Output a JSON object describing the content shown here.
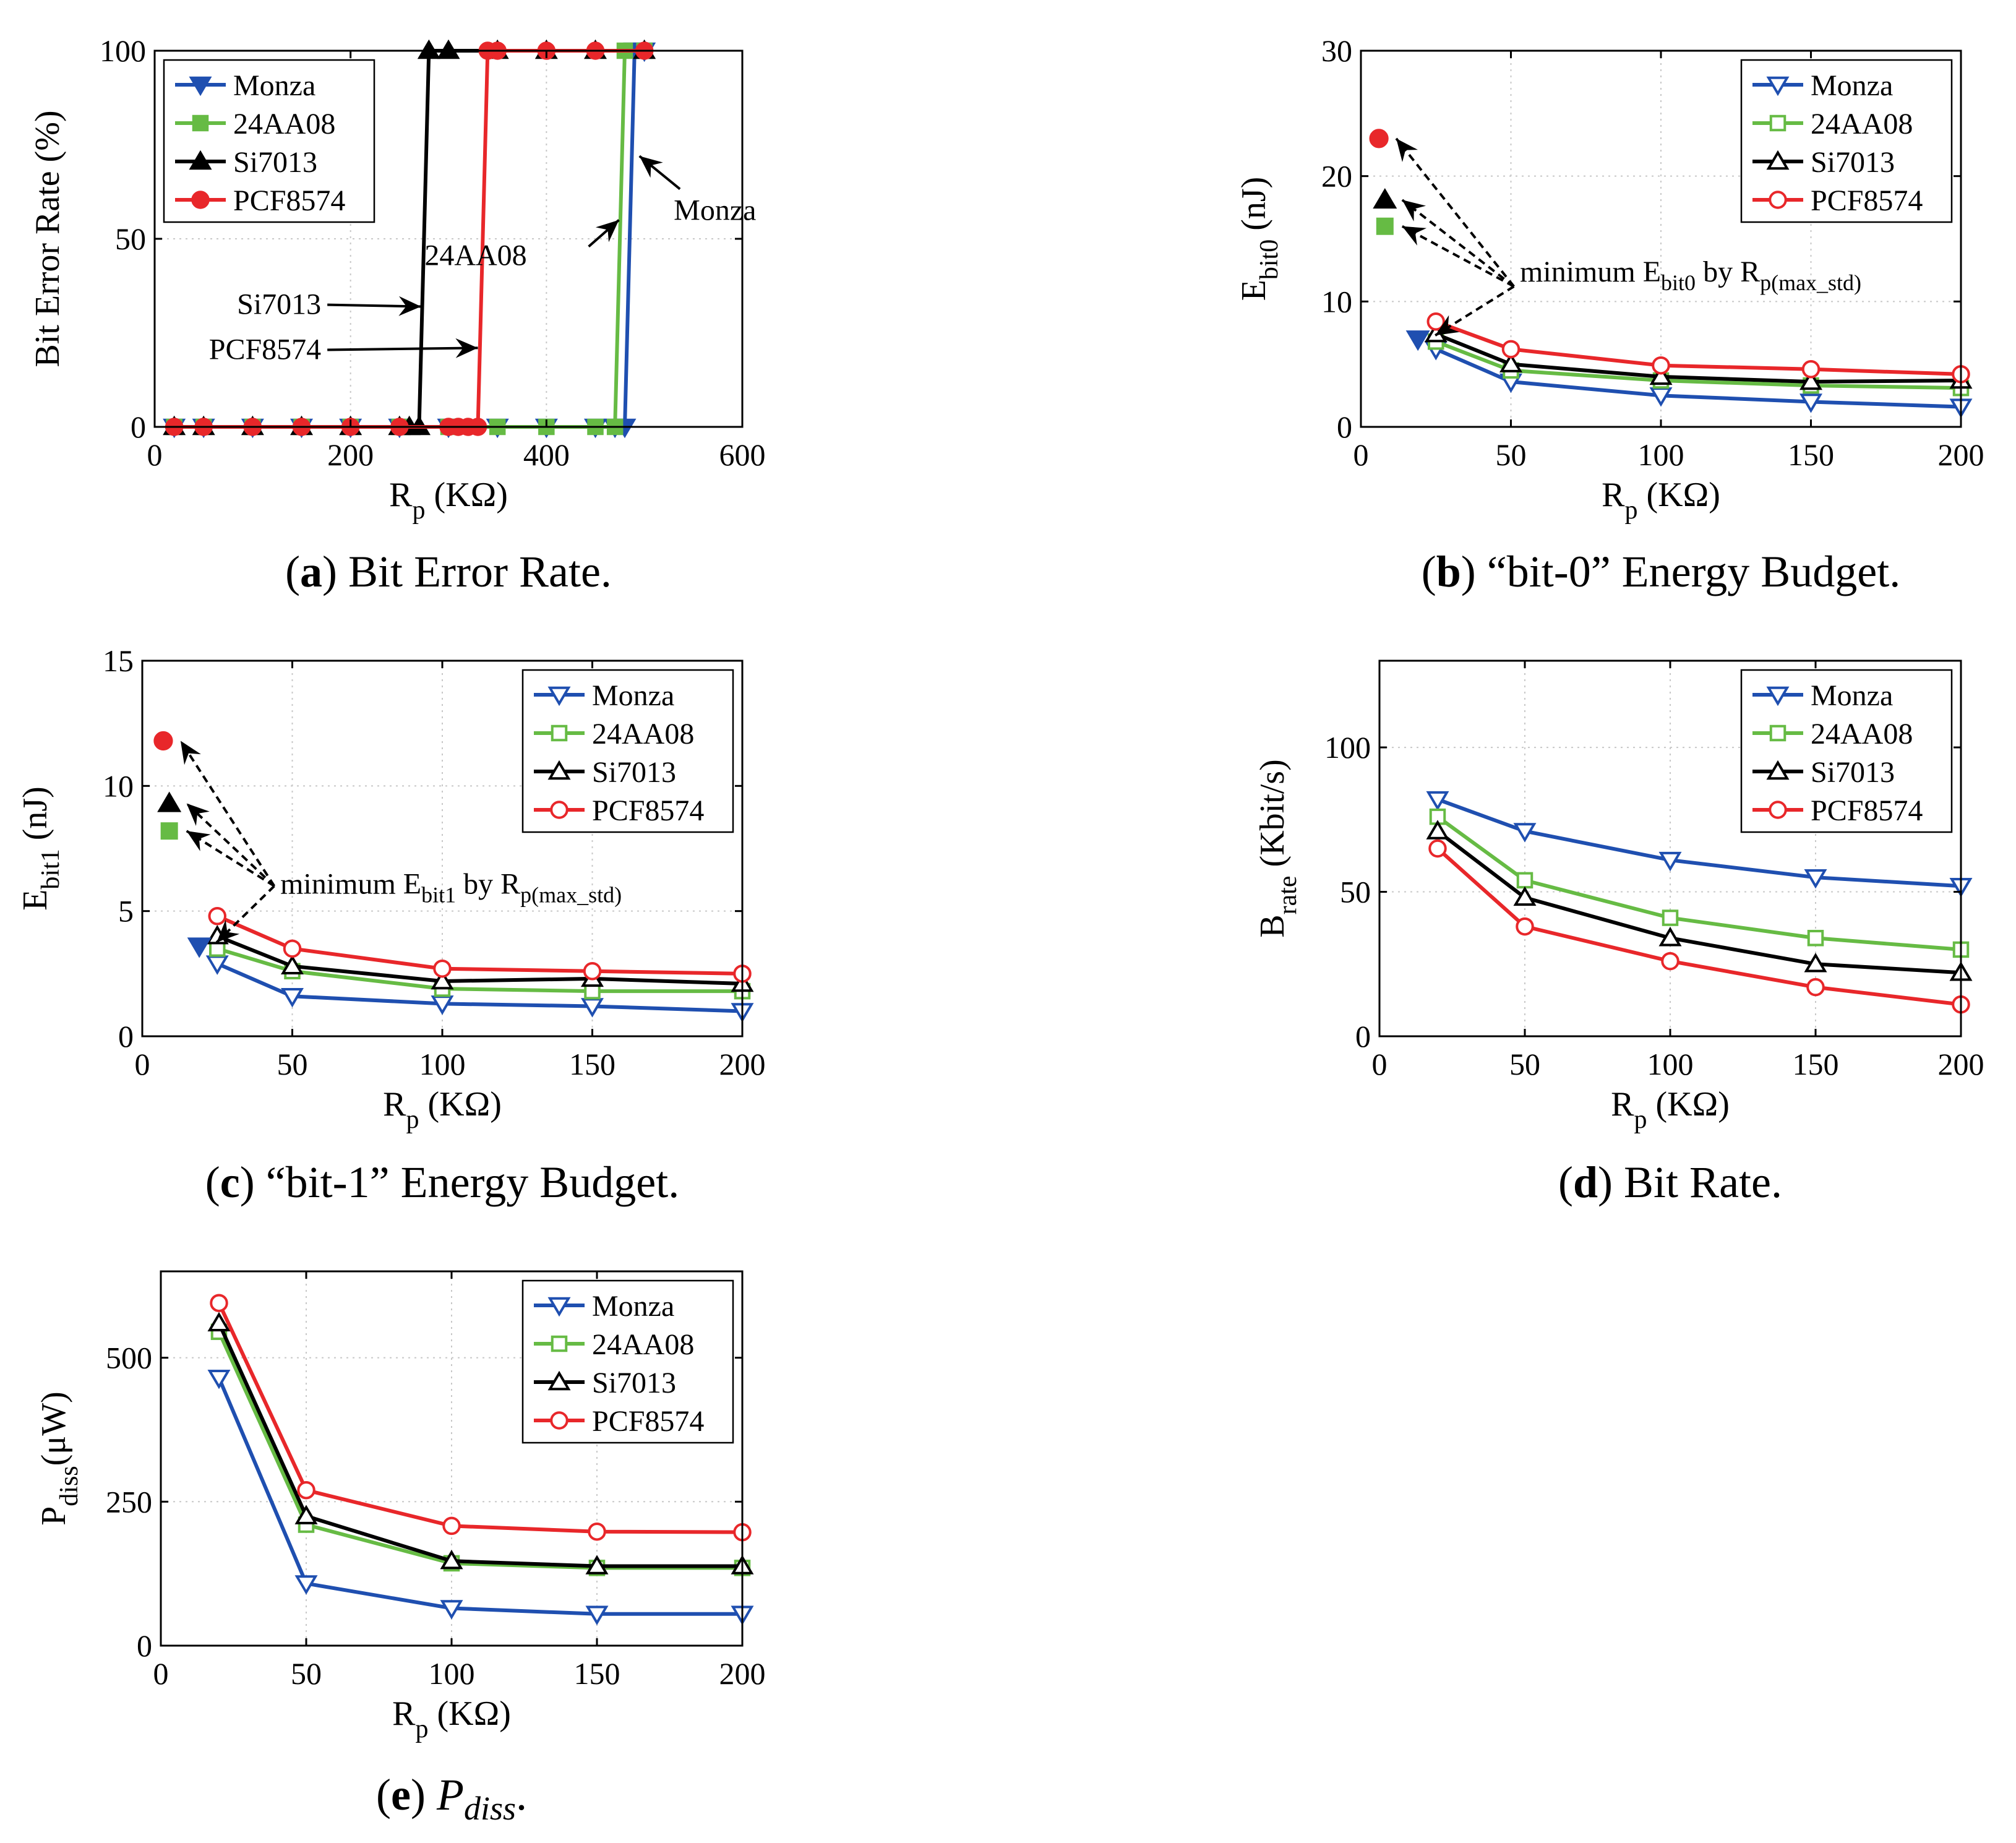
{
  "colors": {
    "Monza": "#1f4fb0",
    "24AA08": "#66bb44",
    "Si7013": "#000000",
    "PCF8574": "#e8272a",
    "grid": "#c8c8c8",
    "arrow": "#000000"
  },
  "series_names": [
    "Monza",
    "24AA08",
    "Si7013",
    "PCF8574"
  ],
  "chart_data": [
    {
      "id": "a",
      "type": "line",
      "title": "",
      "caption_letter": "a",
      "caption_text": "Bit Error Rate.",
      "ylabel": "Bit Error Rate (%)",
      "xlabel_main": "R",
      "xlabel_sub": "p",
      "xlabel_suffix": " (KΩ)",
      "xlim": [
        0,
        600
      ],
      "ylim": [
        0,
        100
      ],
      "xticks": [
        0,
        200,
        400,
        600
      ],
      "yticks": [
        0,
        50,
        100
      ],
      "filled_markers": true,
      "legend_position": "top-left",
      "series": [
        {
          "name": "Monza",
          "x": [
            20,
            50,
            100,
            150,
            200,
            250,
            300,
            350,
            400,
            450,
            470,
            480,
            490,
            500
          ],
          "y": [
            0,
            0,
            0,
            0,
            0,
            0,
            0,
            0,
            0,
            0,
            0,
            0,
            100,
            100
          ]
        },
        {
          "name": "24AA08",
          "x": [
            20,
            50,
            100,
            150,
            200,
            250,
            300,
            350,
            400,
            450,
            470,
            480,
            500
          ],
          "y": [
            0,
            0,
            0,
            0,
            0,
            0,
            0,
            0,
            0,
            0,
            0,
            100,
            100
          ]
        },
        {
          "name": "Si7013",
          "x": [
            20,
            50,
            100,
            150,
            200,
            250,
            260,
            270,
            280,
            300,
            350,
            400,
            450,
            500
          ],
          "y": [
            0,
            0,
            0,
            0,
            0,
            0,
            0,
            0,
            100,
            100,
            100,
            100,
            100,
            100
          ]
        },
        {
          "name": "PCF8574",
          "x": [
            20,
            50,
            100,
            150,
            200,
            250,
            300,
            310,
            320,
            330,
            340,
            350,
            400,
            450,
            500
          ],
          "y": [
            0,
            0,
            0,
            0,
            0,
            0,
            0,
            0,
            0,
            0,
            100,
            100,
            100,
            100,
            100
          ]
        }
      ],
      "annotations": [
        {
          "text": "Monza",
          "target_x": 495,
          "target_y": 72,
          "label_x": 530,
          "label_y": 55
        },
        {
          "text": "24AA08",
          "target_x": 474,
          "target_y": 55,
          "label_x": 380,
          "label_y": 43
        },
        {
          "text": "Si7013",
          "target_x": 272,
          "target_y": 32,
          "label_x": 170,
          "label_y": 30
        },
        {
          "text": "PCF8574",
          "target_x": 330,
          "target_y": 21,
          "label_x": 170,
          "label_y": 18
        }
      ]
    },
    {
      "id": "b",
      "type": "line",
      "caption_letter": "b",
      "caption_text": "“bit-0” Energy Budget.",
      "ylabel_main": "E",
      "ylabel_sub": "bit0",
      "ylabel_suffix": " (nJ)",
      "xlabel_main": "R",
      "xlabel_sub": "p",
      "xlabel_suffix": " (KΩ)",
      "xlim": [
        0,
        200
      ],
      "ylim": [
        0,
        30
      ],
      "xticks": [
        0,
        50,
        100,
        150,
        200
      ],
      "yticks": [
        0,
        10,
        20,
        30
      ],
      "filled_markers": false,
      "legend_position": "top-right",
      "series": [
        {
          "name": "Monza",
          "x": [
            25,
            50,
            100,
            150,
            200
          ],
          "y": [
            6.2,
            3.6,
            2.5,
            2.0,
            1.6
          ]
        },
        {
          "name": "24AA08",
          "x": [
            25,
            50,
            100,
            150,
            200
          ],
          "y": [
            6.8,
            4.5,
            3.7,
            3.3,
            3.1
          ]
        },
        {
          "name": "Si7013",
          "x": [
            25,
            50,
            100,
            150,
            200
          ],
          "y": [
            7.4,
            5.0,
            4.0,
            3.6,
            3.7
          ]
        },
        {
          "name": "PCF8574",
          "x": [
            25,
            50,
            100,
            150,
            200
          ],
          "y": [
            8.4,
            6.2,
            4.9,
            4.6,
            4.2
          ]
        }
      ],
      "min_points": [
        {
          "name": "Monza",
          "x": 19,
          "y": 7.0
        },
        {
          "name": "24AA08",
          "x": 8,
          "y": 16.0
        },
        {
          "name": "Si7013",
          "x": 8,
          "y": 18.1
        },
        {
          "name": "PCF8574",
          "x": 6,
          "y": 23.0
        }
      ],
      "annotation": {
        "prefix": "minimum E",
        "sub1": "bit0",
        "mid": " by R",
        "sub2": "p(max_std)",
        "label_x": 53,
        "label_y": 11.6,
        "origin_x": 51,
        "origin_y": 11.2
      }
    },
    {
      "id": "c",
      "type": "line",
      "caption_letter": "c",
      "caption_text": "“bit-1” Energy Budget.",
      "ylabel_main": "E",
      "ylabel_sub": "bit1",
      "ylabel_suffix": " (nJ)",
      "xlabel_main": "R",
      "xlabel_sub": "p",
      "xlabel_suffix": " (KΩ)",
      "xlim": [
        0,
        200
      ],
      "ylim": [
        0,
        15
      ],
      "xticks": [
        0,
        50,
        100,
        150,
        200
      ],
      "yticks": [
        0,
        5,
        10,
        15
      ],
      "filled_markers": false,
      "legend_position": "top-right",
      "series": [
        {
          "name": "Monza",
          "x": [
            25,
            50,
            100,
            150,
            200
          ],
          "y": [
            2.9,
            1.6,
            1.3,
            1.2,
            1.0
          ]
        },
        {
          "name": "24AA08",
          "x": [
            25,
            50,
            100,
            150,
            200
          ],
          "y": [
            3.5,
            2.6,
            1.9,
            1.8,
            1.8
          ]
        },
        {
          "name": "Si7013",
          "x": [
            25,
            50,
            100,
            150,
            200
          ],
          "y": [
            4.0,
            2.8,
            2.2,
            2.3,
            2.1
          ]
        },
        {
          "name": "PCF8574",
          "x": [
            25,
            50,
            100,
            150,
            200
          ],
          "y": [
            4.8,
            3.5,
            2.7,
            2.6,
            2.5
          ]
        }
      ],
      "min_points": [
        {
          "name": "Monza",
          "x": 19,
          "y": 3.6
        },
        {
          "name": "24AA08",
          "x": 9,
          "y": 8.2
        },
        {
          "name": "Si7013",
          "x": 9,
          "y": 9.3
        },
        {
          "name": "PCF8574",
          "x": 7,
          "y": 11.8
        }
      ],
      "annotation": {
        "prefix": "minimum E",
        "sub1": "bit1",
        "mid": " by R",
        "sub2": "p(max_std)",
        "label_x": 46,
        "label_y": 5.7,
        "origin_x": 44,
        "origin_y": 6.0
      }
    },
    {
      "id": "d",
      "type": "line",
      "caption_letter": "d",
      "caption_text": "Bit Rate.",
      "ylabel_main": "B",
      "ylabel_sub": "rate",
      "ylabel_suffix": " (Kbit/s)",
      "xlabel_main": "R",
      "xlabel_sub": "p",
      "xlabel_suffix": " (KΩ)",
      "xlim": [
        0,
        200
      ],
      "ylim": [
        0,
        130
      ],
      "xticks": [
        0,
        50,
        100,
        150,
        200
      ],
      "yticks": [
        0,
        50,
        100
      ],
      "filled_markers": false,
      "legend_position": "top-right",
      "series": [
        {
          "name": "Monza",
          "x": [
            20,
            50,
            100,
            150,
            200
          ],
          "y": [
            82,
            71,
            61,
            55,
            52
          ]
        },
        {
          "name": "24AA08",
          "x": [
            20,
            50,
            100,
            150,
            200
          ],
          "y": [
            76,
            54,
            41,
            34,
            30
          ]
        },
        {
          "name": "Si7013",
          "x": [
            20,
            50,
            100,
            150,
            200
          ],
          "y": [
            71,
            48,
            34,
            25,
            22
          ]
        },
        {
          "name": "PCF8574",
          "x": [
            20,
            50,
            100,
            150,
            200
          ],
          "y": [
            65,
            38,
            26,
            17,
            11
          ]
        }
      ]
    },
    {
      "id": "e",
      "type": "line",
      "caption_letter": "e",
      "caption_text": "P",
      "caption_sub": "diss",
      "caption_end": ".",
      "ylabel_main": "P",
      "ylabel_sub": "diss",
      "ylabel_suffix": "(μW)",
      "xlabel_main": "R",
      "xlabel_sub": "p",
      "xlabel_suffix": " (KΩ)",
      "xlim": [
        0,
        200
      ],
      "ylim": [
        0,
        650
      ],
      "xticks": [
        0,
        50,
        100,
        150,
        200
      ],
      "yticks": [
        0,
        250,
        500
      ],
      "filled_markers": false,
      "legend_position": "top-right",
      "series": [
        {
          "name": "Monza",
          "x": [
            20,
            50,
            100,
            150,
            200
          ],
          "y": [
            465,
            108,
            65,
            55,
            55
          ]
        },
        {
          "name": "24AA08",
          "x": [
            20,
            50,
            100,
            150,
            200
          ],
          "y": [
            545,
            210,
            143,
            135,
            135
          ]
        },
        {
          "name": "Si7013",
          "x": [
            20,
            50,
            100,
            150,
            200
          ],
          "y": [
            560,
            225,
            147,
            138,
            138
          ]
        },
        {
          "name": "PCF8574",
          "x": [
            20,
            50,
            100,
            150,
            200
          ],
          "y": [
            595,
            270,
            208,
            198,
            197
          ]
        }
      ]
    }
  ]
}
